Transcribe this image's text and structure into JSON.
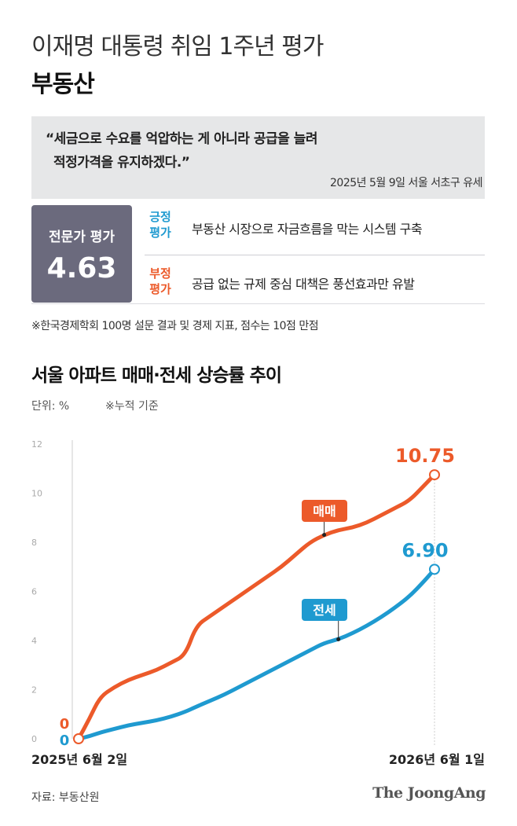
{
  "header": {
    "title": "이재명 대통령 취임 1주년 평가",
    "subtitle": "부동산"
  },
  "quote": {
    "line1": "“세금으로 수요를 억압하는 게 아니라 공급을 늘려",
    "line2": "적정가격을 유지하겠다.”",
    "source": "2025년 5월 9일 서울 서초구 유세"
  },
  "expert": {
    "label": "전문가 평가",
    "score": "4.63",
    "positive_tag_line1": "긍정",
    "positive_tag_line2": "평가",
    "positive_text": "부동산 시장으로 자금흐름을 막는 시스템 구축",
    "negative_tag_line1": "부정",
    "negative_tag_line2": "평가",
    "negative_text": "공급 없는 규제 중심 대책은 풍선효과만 유발"
  },
  "note": "※한국경제학회 100명 설문 결과 및 경제 지표, 점수는 10점 만점",
  "chart_data": {
    "type": "line",
    "title": "서울 아파트 매매·전세 상승률 추이",
    "unit": "단위: %",
    "basis": "※누적 기준",
    "xlabel": "",
    "ylabel": "",
    "ylim": [
      0,
      12
    ],
    "yticks": [
      "0",
      "2",
      "4",
      "6",
      "8",
      "10",
      "12"
    ],
    "x_start_label": "2025년 6월 2일",
    "x_end_label": "2026년 6월 1일",
    "grid": false,
    "colors": {
      "sale": "#ec5a2a",
      "jeonse": "#1f9ad0",
      "axis": "#cccccc"
    },
    "x": [
      0,
      0.03,
      0.06,
      0.1,
      0.14,
      0.18,
      0.22,
      0.26,
      0.3,
      0.33,
      0.37,
      0.41,
      0.45,
      0.49,
      0.53,
      0.57,
      0.61,
      0.65,
      0.69,
      0.73,
      0.77,
      0.81,
      0.85,
      0.89,
      0.93,
      0.97,
      1
    ],
    "series": [
      {
        "name": "매매",
        "label": "매매",
        "start_label": "0",
        "end_label": "10.75",
        "values": [
          0,
          0.8,
          1.7,
          2.1,
          2.4,
          2.6,
          2.8,
          3.1,
          3.4,
          4.6,
          5.0,
          5.4,
          5.8,
          6.2,
          6.6,
          7.0,
          7.5,
          8.0,
          8.3,
          8.5,
          8.6,
          8.8,
          9.1,
          9.4,
          9.7,
          10.3,
          10.75
        ]
      },
      {
        "name": "전세",
        "label": "전세",
        "start_label": "0",
        "end_label": "6.90",
        "values": [
          0,
          0.1,
          0.25,
          0.4,
          0.55,
          0.65,
          0.75,
          0.9,
          1.1,
          1.3,
          1.55,
          1.8,
          2.1,
          2.4,
          2.7,
          3.0,
          3.3,
          3.6,
          3.9,
          4.05,
          4.3,
          4.6,
          4.95,
          5.35,
          5.8,
          6.4,
          6.9
        ]
      }
    ]
  },
  "footer": {
    "source": "자료: 부동산원",
    "logo": "The JoongAng"
  }
}
